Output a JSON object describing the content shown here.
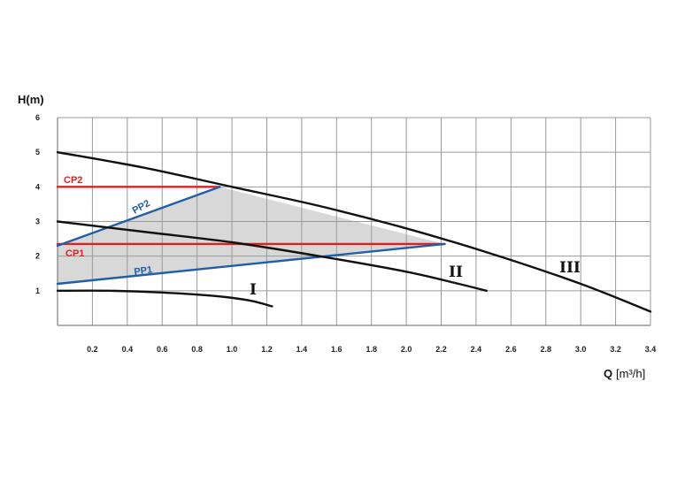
{
  "chart_data": {
    "type": "line",
    "xlim": [
      0,
      3.4
    ],
    "ylim": [
      0,
      6
    ],
    "grid": true,
    "x_ticks": [
      "0.2",
      "0.4",
      "0.6",
      "0.8",
      "1.0",
      "1.2",
      "1.4",
      "1.6",
      "1.8",
      "2.0",
      "2.2",
      "2.4",
      "2.6",
      "2.8",
      "3.0",
      "3.2",
      "3.4"
    ],
    "y_ticks": [
      "1",
      "2",
      "3",
      "4",
      "5",
      "6"
    ],
    "ylabel": "H(m)",
    "xlabel_main": "Q",
    "xlabel_unit": "[m³/h]",
    "shaded_region": {
      "color": "#d8d8d8",
      "points": [
        [
          0,
          1.2
        ],
        [
          0,
          2.3
        ],
        [
          0.93,
          4.0
        ],
        [
          2.22,
          2.35
        ]
      ]
    },
    "series": [
      {
        "name": "I",
        "color": "#111111",
        "points": [
          [
            0,
            1.0
          ],
          [
            0.3,
            1.0
          ],
          [
            0.6,
            0.95
          ],
          [
            0.9,
            0.85
          ],
          [
            1.1,
            0.72
          ],
          [
            1.23,
            0.55
          ]
        ]
      },
      {
        "name": "II",
        "color": "#111111",
        "points": [
          [
            0,
            3.0
          ],
          [
            0.5,
            2.7
          ],
          [
            1.0,
            2.4
          ],
          [
            1.5,
            2.0
          ],
          [
            2.0,
            1.55
          ],
          [
            2.3,
            1.2
          ],
          [
            2.46,
            1.0
          ]
        ]
      },
      {
        "name": "III",
        "color": "#111111",
        "points": [
          [
            0,
            5.0
          ],
          [
            0.5,
            4.55
          ],
          [
            1.0,
            4.0
          ],
          [
            1.5,
            3.45
          ],
          [
            2.0,
            2.8
          ],
          [
            2.5,
            2.05
          ],
          [
            3.0,
            1.2
          ],
          [
            3.4,
            0.4
          ]
        ]
      },
      {
        "name": "CP1",
        "color": "#e02020",
        "points": [
          [
            0,
            2.35
          ],
          [
            2.22,
            2.35
          ]
        ]
      },
      {
        "name": "CP2",
        "color": "#e02020",
        "points": [
          [
            0,
            4.0
          ],
          [
            0.93,
            4.0
          ]
        ]
      },
      {
        "name": "PP1",
        "color": "#1f5fa8",
        "points": [
          [
            0,
            1.2
          ],
          [
            2.22,
            2.35
          ]
        ]
      },
      {
        "name": "PP2",
        "color": "#1f5fa8",
        "points": [
          [
            0,
            2.3
          ],
          [
            0.93,
            4.0
          ]
        ]
      }
    ]
  }
}
